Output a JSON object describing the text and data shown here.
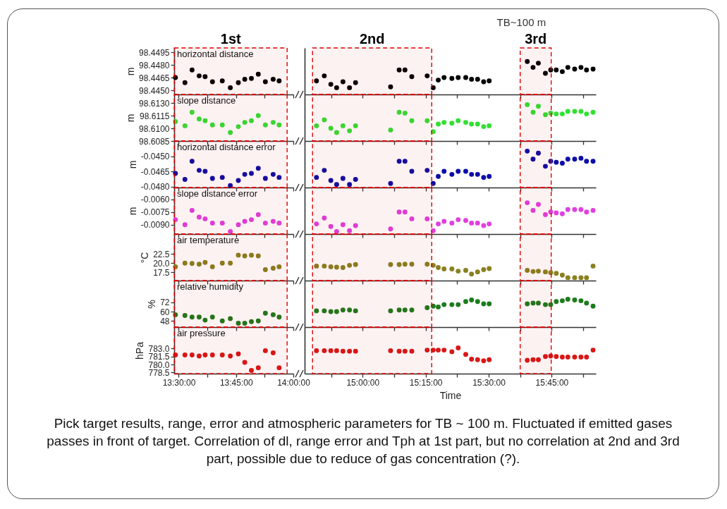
{
  "chart_data": [
    {
      "type": "scatter",
      "title": "horizontal distance",
      "ylabel": "m",
      "color": "#000000",
      "marker": "circle",
      "tick_labels": "y",
      "x": [
        13.4855,
        13.527,
        13.558,
        13.589,
        13.615,
        13.647,
        13.69,
        13.725,
        13.76,
        13.788,
        13.817,
        13.847,
        13.878,
        13.912,
        13.938
      ],
      "values": [
        98.4465,
        98.4459,
        98.4474,
        98.4467,
        98.4466,
        98.446,
        98.4461,
        98.4453,
        98.4459,
        98.4463,
        98.4464,
        98.4469,
        98.446,
        98.4463,
        98.4461
      ],
      "xlim": [
        13.48,
        14.0
      ],
      "xticks": [
        {
          "value": 13.5,
          "label": null
        },
        {
          "value": 13.625,
          "label": null
        },
        {
          "value": 13.75,
          "label": null
        },
        {
          "value": 13.875,
          "label": null
        },
        {
          "value": 14.0,
          "label": null
        }
      ],
      "ylim": [
        98.4445,
        98.45
      ],
      "yticks": [
        98.4495,
        {
          "value": 98.448,
          "label": "98.4480"
        },
        98.4465,
        {
          "value": 98.445,
          "label": "98.4450"
        }
      ],
      "bands": [
        {
          "axis": "x",
          "from": 13.4807,
          "to": 13.9729,
          "label": "1st",
          "color": "#e00000"
        }
      ]
    },
    {
      "type": "scatter",
      "color": "#000000",
      "marker": "circle",
      "tick_labels": false,
      "x": [
        14.817,
        14.848,
        14.874,
        14.897,
        14.922,
        14.948,
        14.972,
        15.111,
        15.145,
        15.168,
        15.195,
        15.256,
        15.28,
        15.3,
        15.323,
        15.354,
        15.379,
        15.409,
        15.432,
        15.456,
        15.48,
        15.502,
        15.653,
        15.676,
        15.697,
        15.725,
        15.746,
        15.768,
        15.792,
        15.814,
        15.841,
        15.866,
        15.888,
        15.914
      ],
      "values": [
        98.4461,
        98.4467,
        98.4457,
        98.4453,
        98.446,
        98.4453,
        98.4459,
        98.4454,
        98.4474,
        98.4474,
        98.4466,
        98.4467,
        98.4453,
        98.4462,
        98.4465,
        98.4464,
        98.4465,
        98.4465,
        98.4463,
        98.4463,
        98.446,
        98.4461,
        98.4484,
        98.4477,
        98.4482,
        98.447,
        98.4474,
        98.4474,
        98.4472,
        98.4477,
        98.4475,
        98.4477,
        98.4474,
        98.4475
      ],
      "ylim": [
        98.4445,
        98.45
      ],
      "xlim": [
        14.77,
        15.925
      ],
      "xticks": [
        {
          "value": 14.875,
          "label": null
        },
        {
          "value": 15.0,
          "label": null
        },
        {
          "value": 15.125,
          "label": null
        },
        {
          "value": 15.25,
          "label": null
        },
        {
          "value": 15.375,
          "label": null
        },
        {
          "value": 15.5,
          "label": null
        },
        {
          "value": 15.625,
          "label": null
        },
        {
          "value": 15.75,
          "label": null
        },
        {
          "value": 15.875,
          "label": null
        }
      ],
      "annotations": [
        "TB~100 m"
      ],
      "bands": [
        {
          "axis": "x",
          "from": 14.8013,
          "to": 15.2742,
          "label": "2nd",
          "color": "#e00000"
        },
        {
          "axis": "x",
          "from": 15.6249,
          "to": 15.748,
          "label": "3rd",
          "color": "#e00000"
        }
      ]
    },
    {
      "type": "scatter",
      "title": "slope distance",
      "ylabel": "m",
      "color": "#33e033",
      "marker": "circle",
      "tick_labels": "y",
      "x": [
        13.4855,
        13.527,
        13.558,
        13.589,
        13.615,
        13.647,
        13.69,
        13.725,
        13.76,
        13.788,
        13.817,
        13.847,
        13.878,
        13.912,
        13.938
      ],
      "values": [
        98.6108,
        98.6103,
        98.6119,
        98.6111,
        98.6109,
        98.6104,
        98.6104,
        98.6095,
        98.6102,
        98.6107,
        98.6109,
        98.6115,
        98.6104,
        98.6107,
        98.6104
      ],
      "xlim": [
        13.48,
        14.0
      ],
      "xticks": [
        {
          "value": 13.5,
          "label": null
        },
        {
          "value": 13.625,
          "label": null
        },
        {
          "value": 13.75,
          "label": null
        },
        {
          "value": 13.875,
          "label": null
        },
        {
          "value": 14.0,
          "label": null
        }
      ],
      "ylim": [
        98.6085,
        98.614
      ],
      "yticks": [
        {
          "value": 98.613,
          "label": "98.6130"
        },
        98.6115,
        {
          "value": 98.61,
          "label": "98.6100"
        },
        98.6085
      ],
      "bands": [
        {
          "axis": "x",
          "from": 13.4807,
          "to": 13.9729,
          "color": "#e00000"
        }
      ]
    },
    {
      "type": "scatter",
      "color": "#33e033",
      "marker": "circle",
      "tick_labels": false,
      "x": [
        14.817,
        14.848,
        14.874,
        14.897,
        14.922,
        14.948,
        14.972,
        15.111,
        15.145,
        15.168,
        15.195,
        15.256,
        15.28,
        15.3,
        15.323,
        15.354,
        15.379,
        15.409,
        15.432,
        15.456,
        15.48,
        15.502,
        15.653,
        15.676,
        15.697,
        15.725,
        15.746,
        15.768,
        15.792,
        15.814,
        15.841,
        15.866,
        15.888,
        15.914
      ],
      "values": [
        98.6103,
        98.611,
        98.61,
        98.6095,
        98.6103,
        98.6097,
        98.6103,
        98.6098,
        98.6119,
        98.6118,
        98.6109,
        98.6109,
        98.6096,
        98.6105,
        98.6107,
        98.6106,
        98.6109,
        98.6107,
        98.6105,
        98.6105,
        98.6102,
        98.6103,
        98.6128,
        98.6119,
        98.6126,
        98.6116,
        98.6118,
        98.6117,
        98.6117,
        98.612,
        98.612,
        98.612,
        98.6117,
        98.6119
      ],
      "ylim": [
        98.6085,
        98.614
      ],
      "xlim": [
        14.77,
        15.925
      ],
      "xticks": [
        {
          "value": 14.875,
          "label": null
        },
        {
          "value": 15.0,
          "label": null
        },
        {
          "value": 15.125,
          "label": null
        },
        {
          "value": 15.25,
          "label": null
        },
        {
          "value": 15.375,
          "label": null
        },
        {
          "value": 15.5,
          "label": null
        },
        {
          "value": 15.625,
          "label": null
        },
        {
          "value": 15.75,
          "label": null
        },
        {
          "value": 15.875,
          "label": null
        }
      ],
      "bands": [
        {
          "axis": "x",
          "from": 14.8013,
          "to": 15.2742,
          "color": "#e00000"
        },
        {
          "axis": "x",
          "from": 15.6249,
          "to": 15.748,
          "color": "#e00000"
        }
      ]
    },
    {
      "type": "scatter",
      "title": "horizontal distance error",
      "ylabel": "m",
      "color": "#0d0da8",
      "marker": "circle",
      "tick_labels": "y",
      "x": [
        13.4855,
        13.527,
        13.558,
        13.589,
        13.615,
        13.647,
        13.69,
        13.725,
        13.76,
        13.788,
        13.817,
        13.847,
        13.878,
        13.912,
        13.938
      ],
      "values": [
        -0.0467,
        -0.0473,
        -0.0455,
        -0.0464,
        -0.0465,
        -0.0472,
        -0.0471,
        -0.0479,
        -0.0474,
        -0.0468,
        -0.0467,
        -0.0462,
        -0.0472,
        -0.0468,
        -0.0471
      ],
      "xlim": [
        13.48,
        14.0
      ],
      "xticks": [
        {
          "value": 13.5,
          "label": null
        },
        {
          "value": 13.625,
          "label": null
        },
        {
          "value": 13.75,
          "label": null
        },
        {
          "value": 13.875,
          "label": null
        },
        {
          "value": 14.0,
          "label": null
        }
      ],
      "ylim": [
        -0.0481,
        -0.0435
      ],
      "yticks": [
        {
          "value": -0.045,
          "label": "-0.0450"
        },
        -0.0465,
        {
          "value": -0.048,
          "label": "-0.0480"
        }
      ],
      "bands": [
        {
          "axis": "x",
          "from": 13.4807,
          "to": 13.9729,
          "color": "#e00000"
        }
      ]
    },
    {
      "type": "scatter",
      "color": "#0d0da8",
      "marker": "circle",
      "tick_labels": false,
      "x": [
        14.817,
        14.848,
        14.874,
        14.897,
        14.922,
        14.948,
        14.972,
        15.111,
        15.145,
        15.168,
        15.195,
        15.256,
        15.28,
        15.3,
        15.323,
        15.354,
        15.379,
        15.409,
        15.432,
        15.456,
        15.48,
        15.502,
        15.653,
        15.676,
        15.697,
        15.725,
        15.746,
        15.768,
        15.792,
        15.814,
        15.841,
        15.866,
        15.888,
        15.914
      ],
      "values": [
        -0.0471,
        -0.0464,
        -0.0474,
        -0.0478,
        -0.0472,
        -0.0478,
        -0.0473,
        -0.0477,
        -0.0455,
        -0.0455,
        -0.0465,
        -0.0464,
        -0.0477,
        -0.047,
        -0.0465,
        -0.0468,
        -0.0465,
        -0.0465,
        -0.0468,
        -0.0468,
        -0.0471,
        -0.047,
        -0.0445,
        -0.0453,
        -0.0447,
        -0.046,
        -0.0455,
        -0.0456,
        -0.0457,
        -0.0453,
        -0.0453,
        -0.0452,
        -0.0455,
        -0.0455
      ],
      "ylim": [
        -0.0481,
        -0.0435
      ],
      "xlim": [
        14.77,
        15.925
      ],
      "xticks": [
        {
          "value": 14.875,
          "label": null
        },
        {
          "value": 15.0,
          "label": null
        },
        {
          "value": 15.125,
          "label": null
        },
        {
          "value": 15.25,
          "label": null
        },
        {
          "value": 15.375,
          "label": null
        },
        {
          "value": 15.5,
          "label": null
        },
        {
          "value": 15.625,
          "label": null
        },
        {
          "value": 15.75,
          "label": null
        },
        {
          "value": 15.875,
          "label": null
        }
      ],
      "bands": [
        {
          "axis": "x",
          "from": 14.8013,
          "to": 15.2742,
          "color": "#e00000"
        },
        {
          "axis": "x",
          "from": 15.6249,
          "to": 15.748,
          "color": "#e00000"
        }
      ]
    },
    {
      "type": "scatter",
      "title": "slope distance error",
      "ylabel": "m",
      "color": "#e040e0",
      "marker": "circle",
      "tick_labels": "y",
      "x": [
        13.4855,
        13.527,
        13.558,
        13.589,
        13.615,
        13.647,
        13.69,
        13.725,
        13.76,
        13.788,
        13.817,
        13.847,
        13.878,
        13.912,
        13.938
      ],
      "values": [
        -0.0084,
        -0.009,
        -0.0073,
        -0.0081,
        -0.0083,
        -0.0088,
        -0.0088,
        -0.0098,
        -0.009,
        -0.0086,
        -0.0084,
        -0.0078,
        -0.0088,
        -0.0086,
        -0.0088
      ],
      "xlim": [
        13.48,
        14.0
      ],
      "xticks": [
        {
          "value": 13.5,
          "label": null
        },
        {
          "value": 13.625,
          "label": null
        },
        {
          "value": 13.75,
          "label": null
        },
        {
          "value": 13.875,
          "label": null
        },
        {
          "value": 14.0,
          "label": null
        }
      ],
      "ylim": [
        -0.0101,
        -0.0046
      ],
      "yticks": [
        {
          "value": -0.006,
          "label": "-0.0060"
        },
        -0.0075,
        {
          "value": -0.009,
          "label": "-0.0090"
        }
      ],
      "bands": [
        {
          "axis": "x",
          "from": 13.4807,
          "to": 13.9729,
          "color": "#e00000"
        }
      ]
    },
    {
      "type": "scatter",
      "color": "#e040e0",
      "marker": "circle",
      "tick_labels": false,
      "x": [
        14.817,
        14.848,
        14.874,
        14.897,
        14.922,
        14.948,
        14.972,
        15.111,
        15.145,
        15.168,
        15.195,
        15.256,
        15.28,
        15.3,
        15.323,
        15.354,
        15.379,
        15.409,
        15.432,
        15.456,
        15.48,
        15.502,
        15.653,
        15.676,
        15.697,
        15.725,
        15.746,
        15.768,
        15.792,
        15.814,
        15.841,
        15.866,
        15.888,
        15.914
      ],
      "values": [
        -0.0089,
        -0.0082,
        -0.0092,
        -0.0098,
        -0.009,
        -0.0097,
        -0.0091,
        -0.0095,
        -0.0075,
        -0.0075,
        -0.0083,
        -0.0083,
        -0.0097,
        -0.0089,
        -0.0086,
        -0.0088,
        -0.0084,
        -0.0085,
        -0.0088,
        -0.0088,
        -0.0091,
        -0.0089,
        -0.0064,
        -0.0073,
        -0.0066,
        -0.0078,
        -0.0075,
        -0.0076,
        -0.0077,
        -0.0072,
        -0.0072,
        -0.0072,
        -0.0075,
        -0.0073
      ],
      "ylim": [
        -0.0101,
        -0.0046
      ],
      "xlim": [
        14.77,
        15.925
      ],
      "xticks": [
        {
          "value": 14.875,
          "label": null
        },
        {
          "value": 15.0,
          "label": null
        },
        {
          "value": 15.125,
          "label": null
        },
        {
          "value": 15.25,
          "label": null
        },
        {
          "value": 15.375,
          "label": null
        },
        {
          "value": 15.5,
          "label": null
        },
        {
          "value": 15.625,
          "label": null
        },
        {
          "value": 15.75,
          "label": null
        },
        {
          "value": 15.875,
          "label": null
        }
      ],
      "bands": [
        {
          "axis": "x",
          "from": 14.8013,
          "to": 15.2742,
          "color": "#e00000"
        },
        {
          "axis": "x",
          "from": 15.6249,
          "to": 15.748,
          "color": "#e00000"
        }
      ]
    },
    {
      "type": "scatter",
      "title": "air temperature",
      "ylabel": "°C",
      "color": "#8a8020",
      "marker": "circle",
      "tick_labels": "y",
      "x": [
        13.4855,
        13.527,
        13.558,
        13.589,
        13.615,
        13.647,
        13.69,
        13.725,
        13.76,
        13.788,
        13.817,
        13.847,
        13.878,
        13.912,
        13.938
      ],
      "values": [
        19.0,
        20.0,
        19.9,
        19.7,
        20.2,
        19.0,
        20.0,
        20.0,
        22.2,
        22.0,
        22.2,
        22.0,
        18.2,
        18.6,
        19.0
      ],
      "xlim": [
        13.48,
        14.0
      ],
      "xticks": [
        {
          "value": 13.5,
          "label": null
        },
        {
          "value": 13.625,
          "label": null
        },
        {
          "value": 13.75,
          "label": null
        },
        {
          "value": 13.875,
          "label": null
        },
        {
          "value": 14.0,
          "label": null
        }
      ],
      "ylim": [
        15.2,
        28
      ],
      "yticks": [
        22.5,
        {
          "value": 20,
          "label": "20.0"
        },
        17.5
      ],
      "bands": [
        {
          "axis": "x",
          "from": 13.4807,
          "to": 13.9729,
          "color": "#e00000"
        }
      ]
    },
    {
      "type": "scatter",
      "color": "#8a8020",
      "marker": "circle",
      "tick_labels": false,
      "x": [
        14.817,
        14.848,
        14.874,
        14.897,
        14.922,
        14.948,
        14.972,
        15.111,
        15.145,
        15.168,
        15.195,
        15.256,
        15.28,
        15.3,
        15.323,
        15.354,
        15.379,
        15.409,
        15.432,
        15.456,
        15.48,
        15.502,
        15.653,
        15.676,
        15.697,
        15.725,
        15.746,
        15.768,
        15.792,
        15.814,
        15.841,
        15.866,
        15.888,
        15.914
      ],
      "values": [
        19.2,
        19.2,
        19.0,
        18.9,
        18.8,
        19.4,
        19.6,
        19.6,
        19.6,
        19.7,
        19.7,
        19.7,
        19.4,
        18.8,
        18.4,
        18.4,
        17.8,
        18.0,
        17.0,
        17.6,
        18.2,
        18.5,
        18.0,
        17.7,
        17.8,
        17.6,
        17.4,
        17.2,
        16.7,
        16.0,
        16.0,
        16.0,
        16.0,
        19.2
      ],
      "ylim": [
        15.2,
        28
      ],
      "xlim": [
        14.77,
        15.925
      ],
      "xticks": [
        {
          "value": 14.875,
          "label": null
        },
        {
          "value": 15.0,
          "label": null
        },
        {
          "value": 15.125,
          "label": null
        },
        {
          "value": 15.25,
          "label": null
        },
        {
          "value": 15.375,
          "label": null
        },
        {
          "value": 15.5,
          "label": null
        },
        {
          "value": 15.625,
          "label": null
        },
        {
          "value": 15.75,
          "label": null
        },
        {
          "value": 15.875,
          "label": null
        }
      ],
      "bands": [
        {
          "axis": "x",
          "from": 14.8013,
          "to": 15.2742,
          "color": "#e00000"
        },
        {
          "axis": "x",
          "from": 15.6249,
          "to": 15.748,
          "color": "#e00000"
        }
      ]
    },
    {
      "type": "scatter",
      "title": "relative humidity",
      "ylabel": "%",
      "color": "#1c7c1c",
      "marker": "circle",
      "tick_labels": "y",
      "x": [
        13.4855,
        13.527,
        13.558,
        13.589,
        13.615,
        13.647,
        13.69,
        13.725,
        13.76,
        13.788,
        13.817,
        13.847,
        13.878,
        13.912,
        13.938
      ],
      "values": [
        56,
        55,
        53,
        53,
        49,
        53,
        48,
        51,
        45,
        45,
        47,
        48,
        58,
        56,
        53
      ],
      "xlim": [
        13.48,
        14.0
      ],
      "xticks": [
        {
          "value": 13.5,
          "label": null
        },
        {
          "value": 13.625,
          "label": null
        },
        {
          "value": 13.75,
          "label": null
        },
        {
          "value": 13.875,
          "label": null
        },
        {
          "value": 14.0,
          "label": null
        }
      ],
      "ylim": [
        40,
        100
      ],
      "yticks": [
        72,
        60,
        48
      ],
      "bands": [
        {
          "axis": "x",
          "from": 13.4807,
          "to": 13.9729,
          "color": "#e00000"
        }
      ]
    },
    {
      "type": "scatter",
      "color": "#1c7c1c",
      "marker": "circle",
      "tick_labels": false,
      "x": [
        14.817,
        14.848,
        14.874,
        14.897,
        14.922,
        14.948,
        14.972,
        15.111,
        15.145,
        15.168,
        15.195,
        15.256,
        15.28,
        15.3,
        15.323,
        15.354,
        15.379,
        15.409,
        15.432,
        15.456,
        15.48,
        15.502,
        15.653,
        15.676,
        15.697,
        15.725,
        15.746,
        15.768,
        15.792,
        15.814,
        15.841,
        15.866,
        15.888,
        15.914
      ],
      "values": [
        61,
        61,
        60,
        60,
        62,
        62,
        61,
        61,
        62,
        62,
        62,
        65,
        67,
        66,
        69,
        69,
        69,
        73,
        75,
        73,
        70,
        70,
        70,
        71,
        71,
        69,
        69,
        73,
        74,
        76,
        75,
        74,
        71,
        67
      ],
      "ylim": [
        40,
        100
      ],
      "xlim": [
        14.77,
        15.925
      ],
      "xticks": [
        {
          "value": 14.875,
          "label": null
        },
        {
          "value": 15.0,
          "label": null
        },
        {
          "value": 15.125,
          "label": null
        },
        {
          "value": 15.25,
          "label": null
        },
        {
          "value": 15.375,
          "label": null
        },
        {
          "value": 15.5,
          "label": null
        },
        {
          "value": 15.625,
          "label": null
        },
        {
          "value": 15.75,
          "label": null
        },
        {
          "value": 15.875,
          "label": null
        }
      ],
      "bands": [
        {
          "axis": "x",
          "from": 14.8013,
          "to": 15.2742,
          "color": "#e00000"
        },
        {
          "axis": "x",
          "from": 15.6249,
          "to": 15.748,
          "color": "#e00000"
        }
      ]
    },
    {
      "type": "scatter",
      "title": "air pressure",
      "ylabel": "hPa",
      "color": "#d81818",
      "marker": "circle",
      "x": [
        13.4855,
        13.527,
        13.558,
        13.589,
        13.615,
        13.647,
        13.69,
        13.725,
        13.76,
        13.788,
        13.817,
        13.847,
        13.878,
        13.912,
        13.938
      ],
      "values": [
        781.8,
        781.8,
        781.8,
        781.6,
        781.8,
        781.8,
        781.8,
        781.6,
        782.0,
        780.4,
        778.9,
        779.4,
        782.6,
        782.2,
        779.4
      ],
      "xlim": [
        13.48,
        14.0
      ],
      "xticks": [
        {
          "value": 13.5,
          "label": "13:30:00"
        },
        {
          "value": 13.625,
          "label": null
        },
        {
          "value": 13.75,
          "label": "13:45:00"
        },
        {
          "value": 13.875,
          "label": null
        },
        {
          "value": 14.0,
          "label": "14:00:00"
        }
      ],
      "ylim": [
        778.3,
        787
      ],
      "yticks": [
        {
          "value": 783,
          "label": "783.0"
        },
        781.5,
        {
          "value": 780,
          "label": "780.0"
        },
        778.5
      ],
      "bands": [
        {
          "axis": "x",
          "from": 13.4807,
          "to": 13.9729,
          "color": "#e00000"
        }
      ]
    },
    {
      "type": "scatter",
      "xlabel": "Time",
      "color": "#d81818",
      "marker": "circle",
      "tick_labels": "x",
      "x": [
        14.817,
        14.848,
        14.874,
        14.897,
        14.922,
        14.948,
        14.972,
        15.111,
        15.145,
        15.168,
        15.195,
        15.256,
        15.28,
        15.3,
        15.323,
        15.354,
        15.379,
        15.409,
        15.432,
        15.456,
        15.48,
        15.502,
        15.653,
        15.676,
        15.697,
        15.725,
        15.746,
        15.768,
        15.792,
        15.814,
        15.841,
        15.866,
        15.888,
        15.914
      ],
      "values": [
        782.6,
        782.6,
        782.6,
        782.6,
        782.5,
        782.5,
        782.5,
        782.6,
        782.5,
        782.5,
        782.5,
        782.7,
        782.7,
        782.7,
        782.7,
        782.4,
        783.1,
        781.9,
        781.0,
        780.9,
        780.7,
        780.9,
        780.8,
        780.9,
        780.9,
        781.5,
        781.6,
        781.5,
        781.4,
        781.4,
        781.4,
        781.4,
        781.4,
        782.7
      ],
      "ylim": [
        778.3,
        787
      ],
      "xlim": [
        14.77,
        15.925
      ],
      "xticks": [
        {
          "value": 14.875,
          "label": null
        },
        {
          "value": 15.0,
          "label": "15:00:00"
        },
        {
          "value": 15.125,
          "label": null
        },
        {
          "value": 15.25,
          "label": "15:15:00"
        },
        {
          "value": 15.375,
          "label": null
        },
        {
          "value": 15.5,
          "label": "15:30:00"
        },
        {
          "value": 15.625,
          "label": null
        },
        {
          "value": 15.75,
          "label": "15:45:00"
        },
        {
          "value": 15.875,
          "label": null
        }
      ],
      "annotations": [
        "Pick target results, range, error and atmospheric parameters for TB ~ 100 m. Fluctuated if emitted gases passes in front of target. Correlation of dl, range error and Tph at 1st part, but no correlation at 2nd and 3rd part, possible due to reduce of gas concentration (?)."
      ],
      "bands": [
        {
          "axis": "x",
          "from": 14.8013,
          "to": 15.2742,
          "color": "#e00000"
        },
        {
          "axis": "x",
          "from": 15.6249,
          "to": 15.748,
          "color": "#e00000"
        }
      ]
    }
  ]
}
